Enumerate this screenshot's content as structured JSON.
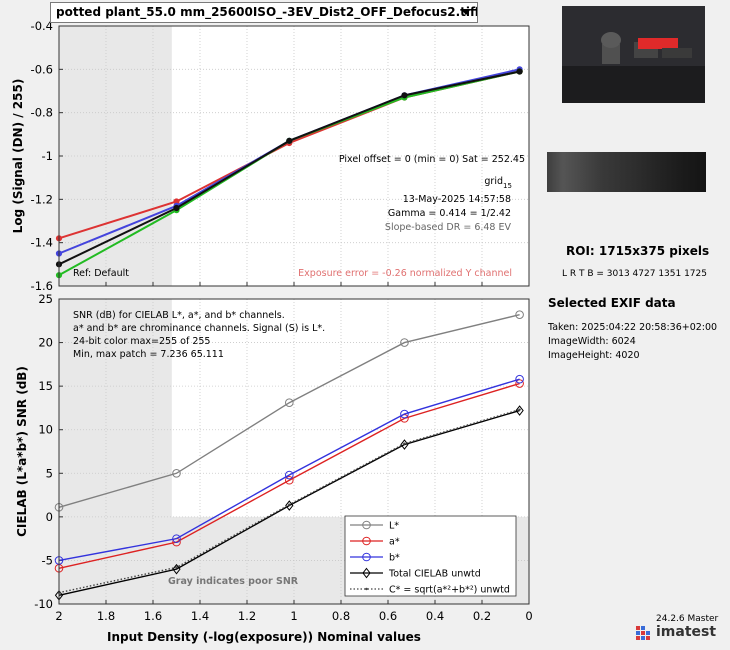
{
  "file_selector": {
    "value": "potted plant_55.0 mm_25600ISO_-3EV_Dist2_OFF_Defocus2.tiff"
  },
  "top_chart": {
    "info": {
      "pixel_offset": "Pixel offset = 0  (min = 0)  Sat = 252.45",
      "grid": "grid",
      "grid_sub": "15",
      "date": "13-May-2025 14:57:58",
      "gamma": "Gamma = 0.414 = 1/2.42",
      "dr": "Slope-based DR = 6.48 EV",
      "ref": "Ref: Default",
      "exposure_error": "Exposure error = -0.26 normalized Y channel"
    }
  },
  "bottom_chart": {
    "notes": [
      "SNR (dB) for CIELAB L*, a*, and b* channels.",
      "a* and b* are chrominance channels. Signal (S) is L*.",
      "24-bit color  max=255 of 255",
      "Min, max patch = 7.236  65.111"
    ],
    "gray_note": "Gray indicates poor SNR"
  },
  "chart_data": [
    {
      "type": "line",
      "ylabel": "Log (Signal (DN) / 255)",
      "xlabel": "",
      "x": [
        2.0,
        1.5,
        1.02,
        0.53,
        0.04
      ],
      "xlim": [
        2.0,
        0.0
      ],
      "ylim": [
        -1.6,
        -0.4
      ],
      "yticks": [
        -1.6,
        -1.4,
        -1.2,
        -1.0,
        -0.8,
        -0.6,
        -0.4
      ],
      "yticklabels": [
        "-1.6",
        "-1.4",
        "-1.2",
        "-1",
        "-0.8",
        "-0.6",
        "-0.4"
      ],
      "xticks": [
        2.0,
        1.8,
        1.6,
        1.4,
        1.2,
        1.0,
        0.8,
        0.6,
        0.4,
        0.2,
        0.0
      ],
      "gray_region_x": [
        2.0,
        1.52
      ],
      "grid": true,
      "series": [
        {
          "color": "#dd3333",
          "values": [
            -1.38,
            -1.21,
            -0.94,
            -0.73,
            -0.61
          ]
        },
        {
          "color": "#4444dd",
          "values": [
            -1.45,
            -1.23,
            -0.93,
            -0.72,
            -0.6
          ]
        },
        {
          "color": "#22bb22",
          "values": [
            -1.55,
            -1.25,
            -0.93,
            -0.73,
            -0.61
          ]
        },
        {
          "color": "#111111",
          "values": [
            -1.5,
            -1.24,
            -0.93,
            -0.72,
            -0.61
          ]
        }
      ]
    },
    {
      "type": "line",
      "ylabel": "CIELAB (L*a*b*)  SNR (dB)",
      "xlabel": "Input Density (-log(exposure))   Nominal values",
      "x": [
        2.0,
        1.5,
        1.02,
        0.53,
        0.04
      ],
      "xlim": [
        2.0,
        0.0
      ],
      "ylim": [
        -10,
        25
      ],
      "yticks": [
        -10,
        -5,
        0,
        5,
        10,
        15,
        20,
        25
      ],
      "yticklabels": [
        "-10",
        "-5",
        "0",
        "5",
        "10",
        "15",
        "20",
        "25"
      ],
      "xticks": [
        2.0,
        1.8,
        1.6,
        1.4,
        1.2,
        1.0,
        0.8,
        0.6,
        0.4,
        0.2,
        0.0
      ],
      "xticklabels": [
        "2",
        "1.8",
        "1.6",
        "1.4",
        "1.2",
        "1",
        "0.8",
        "0.6",
        "0.4",
        "0.2",
        "0"
      ],
      "gray_region_x": [
        2.0,
        1.52
      ],
      "gray_region_y": [
        -10,
        0
      ],
      "grid": true,
      "legend_position": "bottom-right",
      "series": [
        {
          "name": "L*",
          "color": "#808080",
          "marker": "circle",
          "style": "solid",
          "values": [
            1.1,
            5.0,
            13.1,
            20.0,
            23.2
          ]
        },
        {
          "name": "a*",
          "color": "#dd2222",
          "marker": "circle",
          "style": "solid",
          "values": [
            -5.9,
            -2.9,
            4.2,
            11.3,
            15.3
          ]
        },
        {
          "name": "b*",
          "color": "#3333dd",
          "marker": "circle",
          "style": "solid",
          "values": [
            -5.0,
            -2.5,
            4.8,
            11.8,
            15.8
          ]
        },
        {
          "name": "Total CIELAB unwtd",
          "color": "#000000",
          "marker": "diamond",
          "style": "solid",
          "values": [
            -9.0,
            -6.0,
            1.3,
            8.3,
            12.2
          ]
        },
        {
          "name": "C* = sqrt(a*²+b*²) unwtd",
          "color": "#444444",
          "marker": "dot",
          "style": "dotted",
          "values": [
            -8.7,
            -5.8,
            1.4,
            8.4,
            12.3
          ]
        }
      ]
    }
  ],
  "side_panel": {
    "roi_title": "ROI:  1715x375 pixels",
    "roi_coords": "L R  T B = 3013 4727   1351 1725",
    "exif_title": "Selected EXIF data",
    "exif": [
      "Taken: 2025:04:22 20:58:36+02:00",
      "ImageWidth:  6024",
      "ImageHeight:  4020"
    ],
    "version": "24.2.6 Master",
    "logo": "imatest"
  }
}
